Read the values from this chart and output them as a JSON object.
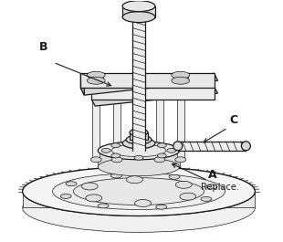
{
  "background_color": "#ffffff",
  "label_A": "A",
  "label_B": "B",
  "label_C": "C",
  "label_replace": "Replace.",
  "line_color": "#1a1a1a",
  "fill_gear": "#f2f2f2",
  "fill_tool": "#eeeeee",
  "fill_mid": "#e8e8e8",
  "fill_dark": "#d8d8d8",
  "figsize": [
    3.1,
    2.65
  ],
  "dpi": 100,
  "lw_main": 0.9,
  "lw_thin": 0.5,
  "lw_thick": 1.2
}
